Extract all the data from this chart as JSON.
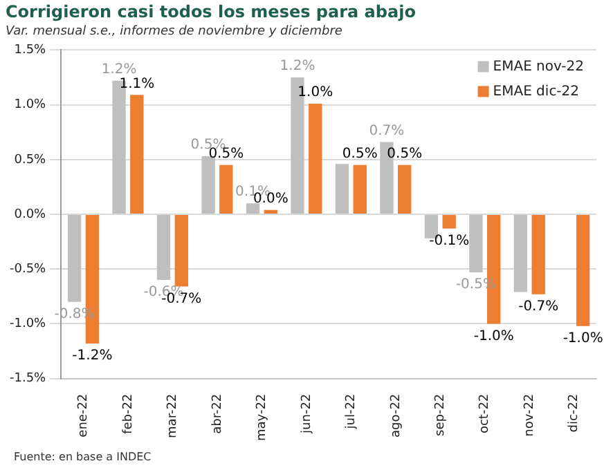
{
  "chart_data": {
    "type": "bar",
    "title": "Corrigieron casi todos los meses para abajo",
    "subtitle": "Var. mensual s.e., informes de noviembre y diciembre",
    "categories": [
      "ene-22",
      "feb-22",
      "mar-22",
      "abr-22",
      "may-22",
      "jun-22",
      "jul-22",
      "ago-22",
      "sep-22",
      "oct-22",
      "nov-22",
      "dic-22"
    ],
    "series": [
      {
        "name": "EMAE nov-22",
        "color": "#bfbfbf",
        "values": [
          -0.8,
          1.22,
          -0.6,
          0.53,
          0.1,
          1.25,
          0.46,
          0.66,
          -0.22,
          -0.53,
          -0.71,
          null
        ],
        "value_labels": [
          "-0.8%",
          "1.2%",
          "-0.6%",
          "0.5%",
          "0.1%",
          "1.2%",
          null,
          "0.7%",
          null,
          "-0.5%",
          null,
          null
        ]
      },
      {
        "name": "EMAE dic-22",
        "color": "#ed7d31",
        "values": [
          -1.18,
          1.09,
          -0.66,
          0.45,
          0.04,
          1.01,
          0.45,
          0.45,
          -0.13,
          -1.0,
          -0.73,
          -1.02
        ],
        "value_labels": [
          "-1.2%",
          "1.1%",
          "-0.7%",
          "0.5%",
          "0.0%",
          "1.0%",
          "0.5%",
          "0.5%",
          "-0.1%",
          "-1.0%",
          "-0.7%",
          "-1.0%"
        ]
      }
    ],
    "ylim": [
      -1.5,
      1.5
    ],
    "yticks": [
      {
        "value": -1.5,
        "label": "-1.5%"
      },
      {
        "value": -1.0,
        "label": "-1.0%"
      },
      {
        "value": -0.5,
        "label": "-0.5%"
      },
      {
        "value": 0,
        "label": "0.0%"
      },
      {
        "value": 0.5,
        "label": "0.5%"
      },
      {
        "value": 1.0,
        "label": "1.0%"
      },
      {
        "value": 1.5,
        "label": "1.5%"
      }
    ],
    "grid": "y",
    "legend": "top right",
    "annotations": [
      "Fuente: en base a INDEC"
    ]
  }
}
